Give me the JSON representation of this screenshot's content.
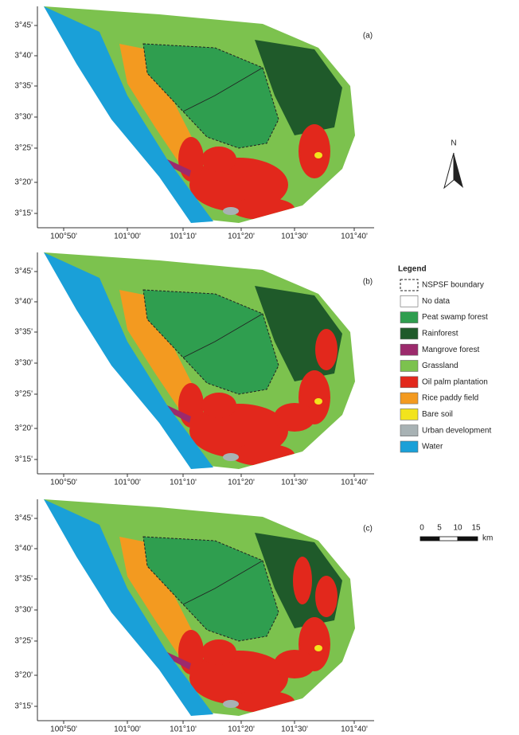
{
  "panels": [
    {
      "label": "(a)"
    },
    {
      "label": "(b)"
    },
    {
      "label": "(c)"
    }
  ],
  "lat_labels": [
    "3°45'",
    "3°40'",
    "3°35'",
    "3°30'",
    "3°25'",
    "3°20'",
    "3°15'"
  ],
  "lon_labels": [
    "100°50'",
    "101°00'",
    "101°10'",
    "101°20'",
    "101°30'",
    "101°40'"
  ],
  "legend": {
    "title": "Legend",
    "items": [
      {
        "label": "NSPSF boundary"
      },
      {
        "label": "No data",
        "color": "#ffffff"
      },
      {
        "label": "Peat swamp forest",
        "color": "#2f9e4f"
      },
      {
        "label": "Rainforest",
        "color": "#1f5a2a"
      },
      {
        "label": "Mangrove forest",
        "color": "#9c2a6c"
      },
      {
        "label": "Grassland",
        "color": "#7cc24e"
      },
      {
        "label": "Oil palm plantation",
        "color": "#e2281c"
      },
      {
        "label": "Rice paddy field",
        "color": "#f39a20"
      },
      {
        "label": "Bare soil",
        "color": "#f2e41c"
      },
      {
        "label": "Urban development",
        "color": "#a8b2b4"
      },
      {
        "label": "Water",
        "color": "#1aa0d8"
      }
    ]
  },
  "north": "N",
  "scale_bar": {
    "labels": [
      "0",
      "5",
      "10",
      "15"
    ],
    "unit": "km"
  }
}
